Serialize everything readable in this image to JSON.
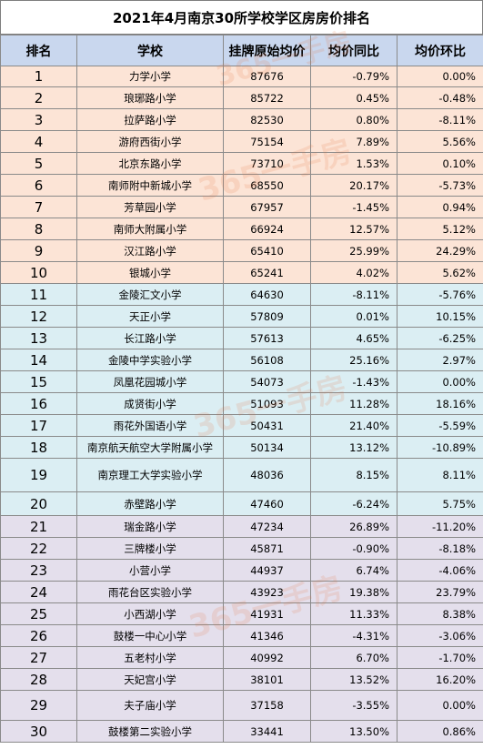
{
  "title": "2021年4月南京30所学校学区房房价排名",
  "headers": [
    "排名",
    "学校",
    "挂牌原始均价",
    "均价同比",
    "均价环比"
  ],
  "watermark": "365一手房",
  "rows": [
    {
      "rank": "1",
      "school": "力学小学",
      "price": "87676",
      "yoy": "-0.79%",
      "mom": "0.00%",
      "group": "g1"
    },
    {
      "rank": "2",
      "school": "琅琊路小学",
      "price": "85722",
      "yoy": "0.45%",
      "mom": "-0.48%",
      "group": "g1"
    },
    {
      "rank": "3",
      "school": "拉萨路小学",
      "price": "82530",
      "yoy": "0.80%",
      "mom": "-8.11%",
      "group": "g1"
    },
    {
      "rank": "4",
      "school": "游府西街小学",
      "price": "75154",
      "yoy": "7.89%",
      "mom": "5.56%",
      "group": "g1"
    },
    {
      "rank": "5",
      "school": "北京东路小学",
      "price": "73710",
      "yoy": "1.53%",
      "mom": "0.10%",
      "group": "g1"
    },
    {
      "rank": "6",
      "school": "南师附中新城小学",
      "price": "68550",
      "yoy": "20.17%",
      "mom": "-5.73%",
      "group": "g1"
    },
    {
      "rank": "7",
      "school": "芳草园小学",
      "price": "67957",
      "yoy": "-1.45%",
      "mom": "0.94%",
      "group": "g1"
    },
    {
      "rank": "8",
      "school": "南师大附属小学",
      "price": "66924",
      "yoy": "12.57%",
      "mom": "5.12%",
      "group": "g1"
    },
    {
      "rank": "9",
      "school": "汉江路小学",
      "price": "65410",
      "yoy": "25.99%",
      "mom": "24.29%",
      "group": "g1"
    },
    {
      "rank": "10",
      "school": "银城小学",
      "price": "65241",
      "yoy": "4.02%",
      "mom": "5.62%",
      "group": "g1"
    },
    {
      "rank": "11",
      "school": "金陵汇文小学",
      "price": "64630",
      "yoy": "-8.11%",
      "mom": "-5.76%",
      "group": "g2"
    },
    {
      "rank": "12",
      "school": "天正小学",
      "price": "57809",
      "yoy": "0.01%",
      "mom": "10.15%",
      "group": "g2"
    },
    {
      "rank": "13",
      "school": "长江路小学",
      "price": "57613",
      "yoy": "4.65%",
      "mom": "-6.25%",
      "group": "g2"
    },
    {
      "rank": "14",
      "school": "金陵中学实验小学",
      "price": "56108",
      "yoy": "25.16%",
      "mom": "2.97%",
      "group": "g2"
    },
    {
      "rank": "15",
      "school": "凤凰花园城小学",
      "price": "54073",
      "yoy": "-1.43%",
      "mom": "0.00%",
      "group": "g2"
    },
    {
      "rank": "16",
      "school": "成贤街小学",
      "price": "51093",
      "yoy": "11.28%",
      "mom": "18.16%",
      "group": "g2"
    },
    {
      "rank": "17",
      "school": "雨花外国语小学",
      "price": "50431",
      "yoy": "21.40%",
      "mom": "-5.59%",
      "group": "g2"
    },
    {
      "rank": "18",
      "school": "南京航天航空大学附属小学",
      "price": "50134",
      "yoy": "13.12%",
      "mom": "-10.89%",
      "group": "g2"
    },
    {
      "rank": "19",
      "school": "南京理工大学实验小学",
      "price": "48036",
      "yoy": "8.15%",
      "mom": "8.11%",
      "group": "g2"
    },
    {
      "rank": "20",
      "school": "赤壁路小学",
      "price": "47460",
      "yoy": "-6.24%",
      "mom": "5.75%",
      "group": "g2"
    },
    {
      "rank": "21",
      "school": "瑞金路小学",
      "price": "47234",
      "yoy": "26.89%",
      "mom": "-11.20%",
      "group": "g3"
    },
    {
      "rank": "22",
      "school": "三牌楼小学",
      "price": "45871",
      "yoy": "-0.90%",
      "mom": "-8.18%",
      "group": "g3"
    },
    {
      "rank": "23",
      "school": "小营小学",
      "price": "44937",
      "yoy": "6.74%",
      "mom": "-4.06%",
      "group": "g3"
    },
    {
      "rank": "24",
      "school": "雨花台区实验小学",
      "price": "43923",
      "yoy": "19.38%",
      "mom": "23.79%",
      "group": "g3"
    },
    {
      "rank": "25",
      "school": "小西湖小学",
      "price": "41931",
      "yoy": "11.33%",
      "mom": "8.38%",
      "group": "g3"
    },
    {
      "rank": "26",
      "school": "鼓楼一中心小学",
      "price": "41346",
      "yoy": "-4.31%",
      "mom": "-3.06%",
      "group": "g3"
    },
    {
      "rank": "27",
      "school": "五老村小学",
      "price": "40992",
      "yoy": "6.70%",
      "mom": "-1.70%",
      "group": "g3"
    },
    {
      "rank": "28",
      "school": "天妃宫小学",
      "price": "38101",
      "yoy": "13.52%",
      "mom": "16.20%",
      "group": "g3"
    },
    {
      "rank": "29",
      "school": "夫子庙小学",
      "price": "37158",
      "yoy": "-3.55%",
      "mom": "0.00%",
      "group": "g3"
    },
    {
      "rank": "30",
      "school": "鼓楼第二实验小学",
      "price": "33441",
      "yoy": "13.50%",
      "mom": "0.86%",
      "group": "g3"
    }
  ]
}
